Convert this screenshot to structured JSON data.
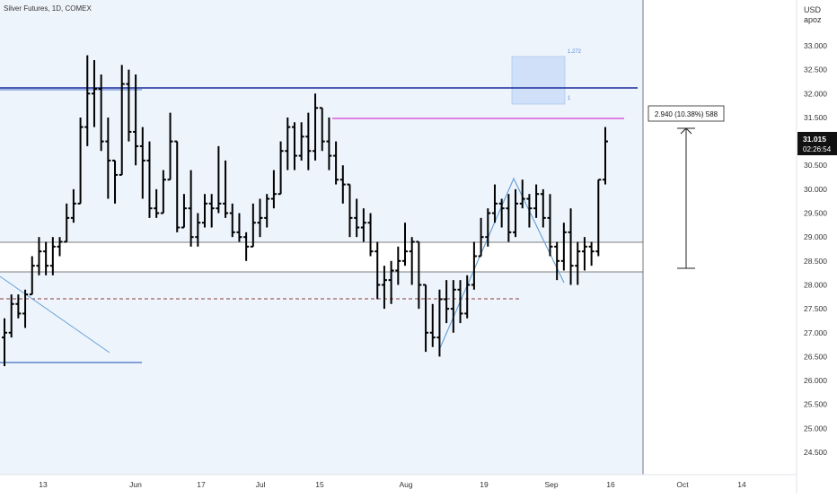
{
  "header": {
    "symbol": "Silver Futures, 1D, COMEX"
  },
  "price_scale": {
    "currency": "USD",
    "user": "apoz"
  },
  "last_price": {
    "value": "31.015",
    "countdown": "02:26:54"
  },
  "measure_label": "2.940 (10.38%) 588",
  "fib_labels": {
    "top": "1.272",
    "bottom": "1"
  },
  "colors": {
    "bars": "#000000",
    "zone": "#eef4fc",
    "resistance": "#1a2a9c",
    "pink": "#d63bd0",
    "trend": "#6aa3d8",
    "dashed": "#8b3a3a",
    "box": "#cfe0f8"
  },
  "chart_data": {
    "type": "ohlc",
    "yaxis": {
      "min": 24.0,
      "max": 33.5,
      "ticks": [
        "33.000",
        "32.500",
        "32.000",
        "31.500",
        "31.000",
        "30.500",
        "30.000",
        "29.500",
        "29.000",
        "28.500",
        "28.000",
        "27.500",
        "27.000",
        "26.500",
        "26.000",
        "25.500",
        "25.000",
        "24.500"
      ]
    },
    "xaxis": {
      "ticks": [
        "13",
        "Jun",
        "17",
        "Jul",
        "15",
        "Aug",
        "19",
        "Sep",
        "16",
        "Oct",
        "14"
      ]
    },
    "levels": {
      "resistance": 32.12,
      "pink": 31.47,
      "zone_top": 28.88,
      "zone_bottom": 28.28,
      "dashed": 27.72,
      "support": 26.32
    },
    "bars": [
      [
        26.9,
        27.3,
        26.3,
        27.0
      ],
      [
        27.0,
        27.8,
        26.9,
        27.6
      ],
      [
        27.6,
        27.8,
        27.3,
        27.4
      ],
      [
        27.4,
        27.9,
        27.1,
        27.8
      ],
      [
        27.8,
        28.6,
        27.8,
        28.4
      ],
      [
        28.4,
        29.0,
        28.2,
        28.7
      ],
      [
        28.7,
        28.9,
        28.2,
        28.4
      ],
      [
        28.4,
        29.0,
        28.2,
        28.8
      ],
      [
        28.8,
        29.0,
        28.6,
        28.9
      ],
      [
        28.9,
        29.7,
        28.9,
        29.4
      ],
      [
        29.4,
        30.0,
        29.3,
        29.7
      ],
      [
        29.7,
        31.5,
        29.7,
        31.3
      ],
      [
        31.3,
        32.8,
        30.9,
        32.0
      ],
      [
        32.0,
        32.7,
        31.3,
        32.1
      ],
      [
        32.1,
        32.4,
        30.8,
        31.0
      ],
      [
        31.0,
        31.5,
        29.8,
        30.6
      ],
      [
        30.6,
        30.6,
        29.7,
        30.3
      ],
      [
        30.3,
        32.6,
        30.3,
        32.2
      ],
      [
        32.2,
        32.5,
        31.0,
        31.2
      ],
      [
        31.2,
        32.4,
        30.5,
        30.9
      ],
      [
        30.9,
        31.3,
        29.8,
        30.6
      ],
      [
        30.6,
        31.0,
        29.4,
        29.6
      ],
      [
        29.6,
        30.0,
        29.4,
        29.5
      ],
      [
        29.5,
        30.4,
        29.5,
        30.2
      ],
      [
        30.2,
        31.6,
        30.2,
        31.0
      ],
      [
        31.0,
        31.0,
        29.1,
        29.2
      ],
      [
        29.2,
        29.9,
        29.2,
        29.6
      ],
      [
        29.6,
        30.4,
        28.8,
        29.0
      ],
      [
        29.0,
        29.5,
        28.8,
        29.3
      ],
      [
        29.3,
        29.9,
        29.2,
        29.7
      ],
      [
        29.7,
        29.9,
        29.2,
        29.6
      ],
      [
        29.6,
        30.9,
        29.5,
        29.7
      ],
      [
        29.7,
        30.6,
        29.4,
        29.5
      ],
      [
        29.5,
        29.7,
        29.0,
        29.1
      ],
      [
        29.1,
        29.5,
        28.9,
        29.0
      ],
      [
        29.0,
        29.1,
        28.5,
        28.8
      ],
      [
        28.8,
        29.7,
        28.8,
        29.3
      ],
      [
        29.3,
        29.8,
        29.0,
        29.4
      ],
      [
        29.4,
        29.9,
        29.2,
        29.8
      ],
      [
        29.8,
        30.4,
        29.6,
        29.9
      ],
      [
        29.9,
        31.0,
        29.9,
        30.8
      ],
      [
        30.8,
        31.5,
        30.4,
        31.3
      ],
      [
        31.3,
        31.4,
        30.4,
        30.7
      ],
      [
        30.7,
        31.4,
        30.6,
        31.1
      ],
      [
        31.1,
        31.6,
        30.4,
        30.8
      ],
      [
        30.8,
        32.0,
        30.6,
        31.7
      ],
      [
        31.7,
        31.7,
        30.8,
        31.0
      ],
      [
        31.0,
        31.5,
        30.4,
        30.7
      ],
      [
        30.7,
        31.0,
        30.1,
        30.2
      ],
      [
        30.2,
        30.5,
        29.7,
        30.1
      ],
      [
        30.1,
        30.1,
        29.0,
        29.4
      ],
      [
        29.4,
        29.8,
        29.0,
        29.2
      ],
      [
        29.2,
        29.6,
        28.9,
        29.3
      ],
      [
        29.3,
        29.5,
        28.6,
        28.7
      ],
      [
        28.7,
        28.9,
        27.7,
        28.0
      ],
      [
        28.0,
        28.4,
        27.5,
        28.1
      ],
      [
        28.1,
        28.5,
        27.6,
        28.3
      ],
      [
        28.3,
        28.8,
        28.0,
        28.5
      ],
      [
        28.5,
        29.3,
        28.4,
        28.7
      ],
      [
        28.7,
        29.0,
        28.0,
        28.9
      ],
      [
        28.9,
        28.9,
        27.5,
        28.0
      ],
      [
        28.0,
        28.0,
        26.6,
        27.0
      ],
      [
        27.0,
        27.6,
        26.7,
        26.9
      ],
      [
        26.9,
        27.9,
        26.5,
        27.7
      ],
      [
        27.7,
        28.1,
        27.2,
        27.5
      ],
      [
        27.5,
        28.1,
        27.0,
        27.9
      ],
      [
        27.9,
        28.1,
        27.2,
        27.4
      ],
      [
        27.4,
        28.2,
        27.3,
        28.0
      ],
      [
        28.0,
        28.9,
        27.9,
        28.6
      ],
      [
        28.6,
        29.4,
        28.6,
        29.0
      ],
      [
        29.0,
        29.6,
        28.8,
        29.5
      ],
      [
        29.5,
        30.1,
        29.3,
        29.7
      ],
      [
        29.7,
        29.8,
        29.2,
        29.6
      ],
      [
        29.6,
        29.9,
        28.9,
        29.1
      ],
      [
        29.1,
        30.0,
        29.0,
        29.7
      ],
      [
        29.7,
        30.2,
        29.6,
        29.8
      ],
      [
        29.8,
        29.9,
        29.2,
        29.6
      ],
      [
        29.6,
        30.1,
        29.4,
        29.9
      ],
      [
        29.9,
        30.0,
        29.2,
        29.4
      ],
      [
        29.4,
        29.9,
        28.6,
        28.8
      ],
      [
        28.8,
        28.9,
        28.1,
        28.5
      ],
      [
        28.5,
        29.3,
        28.3,
        29.1
      ],
      [
        29.1,
        29.6,
        28.0,
        28.4
      ],
      [
        28.4,
        28.9,
        28.0,
        28.7
      ],
      [
        28.7,
        29.0,
        28.3,
        28.8
      ],
      [
        28.8,
        28.9,
        28.4,
        28.7
      ],
      [
        28.7,
        30.2,
        28.6,
        30.2
      ],
      [
        30.2,
        31.3,
        30.1,
        31.0
      ]
    ]
  }
}
